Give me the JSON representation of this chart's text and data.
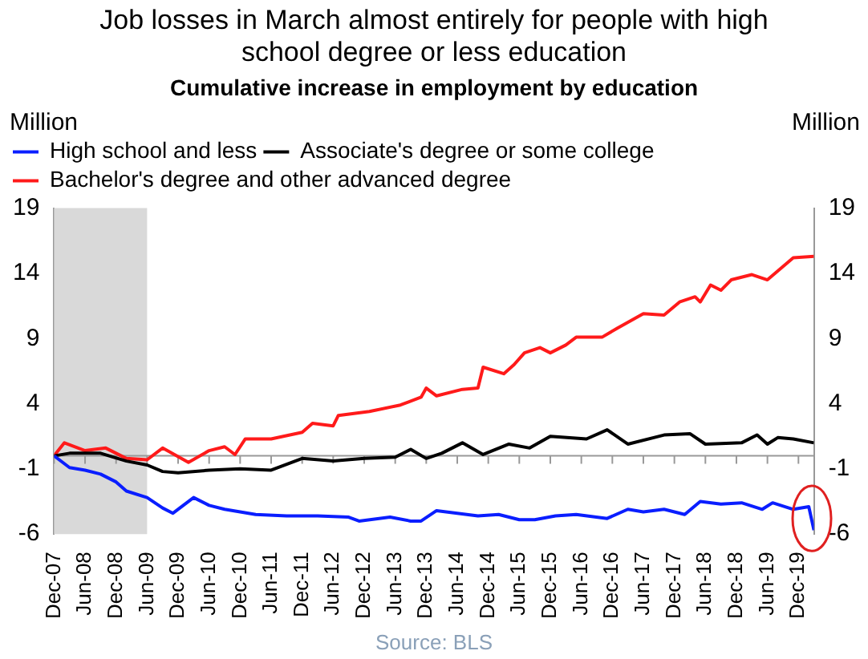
{
  "chart_data": {
    "type": "line",
    "title": "Job losses in March almost entirely for people with high school degree or less education",
    "subtitle": "Cumulative increase in employment by education",
    "ylabel": "Million",
    "y2label": "Million",
    "xlim": [
      "2007-12",
      "2020-03"
    ],
    "xticks": [
      {
        "value": "2007-12",
        "label": "Dec-07"
      },
      {
        "value": "2008-06",
        "label": "Jun-08"
      },
      {
        "value": "2008-12",
        "label": "Dec-08"
      },
      {
        "value": "2009-06",
        "label": "Jun-09"
      },
      {
        "value": "2009-12",
        "label": "Dec-09"
      },
      {
        "value": "2010-06",
        "label": "Jun-10"
      },
      {
        "value": "2010-12",
        "label": "Dec-10"
      },
      {
        "value": "2011-06",
        "label": "Jun-11"
      },
      {
        "value": "2011-12",
        "label": "Dec-11"
      },
      {
        "value": "2012-06",
        "label": "Jun-12"
      },
      {
        "value": "2012-12",
        "label": "Dec-12"
      },
      {
        "value": "2013-06",
        "label": "Jun-13"
      },
      {
        "value": "2013-12",
        "label": "Dec-13"
      },
      {
        "value": "2014-06",
        "label": "Jun-14"
      },
      {
        "value": "2014-12",
        "label": "Dec-14"
      },
      {
        "value": "2015-06",
        "label": "Jun-15"
      },
      {
        "value": "2015-12",
        "label": "Dec-15"
      },
      {
        "value": "2016-06",
        "label": "Jun-16"
      },
      {
        "value": "2016-12",
        "label": "Dec-16"
      },
      {
        "value": "2017-06",
        "label": "Jun-17"
      },
      {
        "value": "2017-12",
        "label": "Dec-17"
      },
      {
        "value": "2018-06",
        "label": "Jun-18"
      },
      {
        "value": "2018-12",
        "label": "Dec-18"
      },
      {
        "value": "2019-06",
        "label": "Jun-19"
      },
      {
        "value": "2019-12",
        "label": "Dec-19"
      }
    ],
    "ylim": [
      -6,
      19
    ],
    "yticks": [
      -6,
      -1,
      4,
      9,
      14,
      19
    ],
    "y2lim": [
      -6,
      19
    ],
    "y2ticks": [
      -6,
      -1,
      4,
      9,
      14,
      19
    ],
    "legend": "top left",
    "grid": false,
    "bands": [
      {
        "axis": "x",
        "from": "2007-12",
        "to": "2009-06",
        "color": "#d9d9d9"
      }
    ],
    "annotations": [
      "Source: BLS"
    ],
    "series": [
      {
        "name": "High school and less",
        "color": "#0a1eff",
        "x": [
          "2007-12",
          "2008-03",
          "2008-06",
          "2008-09",
          "2008-12",
          "2009-02",
          "2009-06",
          "2009-09",
          "2009-11",
          "2010-03",
          "2010-06",
          "2010-09",
          "2011-03",
          "2011-09",
          "2012-03",
          "2012-09",
          "2012-11",
          "2013-05",
          "2013-09",
          "2013-11",
          "2014-02",
          "2014-06",
          "2014-10",
          "2015-02",
          "2015-06",
          "2015-09",
          "2016-01",
          "2016-05",
          "2016-11",
          "2017-03",
          "2017-06",
          "2017-10",
          "2018-02",
          "2018-05",
          "2018-09",
          "2019-01",
          "2019-05",
          "2019-07",
          "2019-11",
          "2020-02",
          "2020-03"
        ],
        "values": [
          0,
          -0.9,
          -1.1,
          -1.4,
          -2.0,
          -2.7,
          -3.2,
          -4.0,
          -4.4,
          -3.2,
          -3.8,
          -4.1,
          -4.5,
          -4.6,
          -4.6,
          -4.7,
          -5.0,
          -4.7,
          -5.0,
          -5.0,
          -4.2,
          -4.4,
          -4.6,
          -4.5,
          -4.9,
          -4.9,
          -4.6,
          -4.5,
          -4.8,
          -4.1,
          -4.3,
          -4.1,
          -4.5,
          -3.5,
          -3.7,
          -3.6,
          -4.1,
          -3.6,
          -4.1,
          -3.9,
          -5.7
        ]
      },
      {
        "name": "Associate's degree or some college",
        "color": "#000000",
        "x": [
          "2007-12",
          "2008-03",
          "2008-09",
          "2009-02",
          "2009-06",
          "2009-09",
          "2009-12",
          "2010-06",
          "2010-12",
          "2011-06",
          "2011-12",
          "2012-06",
          "2012-12",
          "2013-06",
          "2013-09",
          "2013-12",
          "2014-03",
          "2014-07",
          "2014-11",
          "2015-04",
          "2015-08",
          "2015-12",
          "2016-07",
          "2016-11",
          "2017-03",
          "2017-10",
          "2018-03",
          "2018-06",
          "2019-01",
          "2019-04",
          "2019-06",
          "2019-08",
          "2019-11",
          "2020-03"
        ],
        "values": [
          0,
          0.2,
          0.2,
          -0.4,
          -0.7,
          -1.2,
          -1.3,
          -1.1,
          -1.0,
          -1.1,
          -0.2,
          -0.4,
          -0.2,
          -0.1,
          0.5,
          -0.2,
          0.2,
          1.0,
          0.1,
          0.9,
          0.6,
          1.5,
          1.3,
          2.0,
          0.9,
          1.6,
          1.7,
          0.9,
          1.0,
          1.6,
          0.9,
          1.4,
          1.3,
          1.0
        ]
      },
      {
        "name": "Bachelor's degree and other advanced degree",
        "color": "#ff1a1a",
        "x": [
          "2007-12",
          "2008-02",
          "2008-06",
          "2008-10",
          "2009-02",
          "2009-06",
          "2009-09",
          "2010-02",
          "2010-06",
          "2010-09",
          "2010-11",
          "2011-01",
          "2011-06",
          "2011-12",
          "2012-02",
          "2012-06",
          "2012-07",
          "2013-01",
          "2013-07",
          "2013-11",
          "2013-12",
          "2014-02",
          "2014-07",
          "2014-10",
          "2014-11",
          "2015-03",
          "2015-05",
          "2015-07",
          "2015-10",
          "2015-12",
          "2016-03",
          "2016-05",
          "2016-10",
          "2017-01",
          "2017-06",
          "2017-10",
          "2018-01",
          "2018-04",
          "2018-05",
          "2018-07",
          "2018-09",
          "2018-11",
          "2019-03",
          "2019-06",
          "2019-11",
          "2020-03"
        ],
        "values": [
          0,
          1.0,
          0.4,
          0.6,
          -0.2,
          -0.3,
          0.6,
          -0.5,
          0.4,
          0.7,
          0.1,
          1.3,
          1.3,
          1.8,
          2.5,
          2.3,
          3.1,
          3.4,
          3.9,
          4.5,
          5.2,
          4.6,
          5.1,
          5.2,
          6.8,
          6.3,
          7.0,
          7.9,
          8.3,
          7.9,
          8.5,
          9.1,
          9.1,
          9.8,
          10.9,
          10.8,
          11.8,
          12.2,
          11.8,
          13.1,
          12.7,
          13.5,
          13.9,
          13.5,
          15.2,
          15.3
        ]
      }
    ]
  }
}
